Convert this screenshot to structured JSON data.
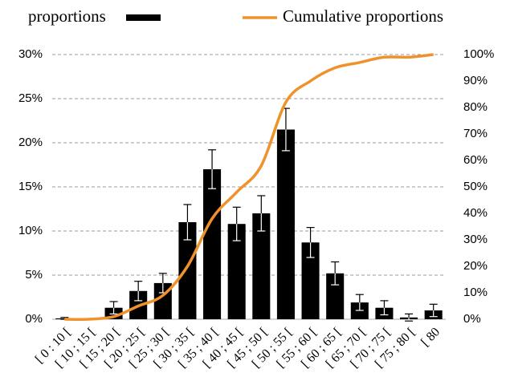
{
  "chart_data": {
    "type": "bar",
    "categories": [
      "[ 0 : 10 [",
      "[ 10 ; 15 [",
      "[ 15 ; 20 [",
      "[ 20 ; 25 [",
      "[ 25 ; 30 [",
      "[ 30 ; 35 [",
      "[ 35 ; 40 [",
      "[ 40 ; 45 [",
      "[ 45 ; 50 [",
      "[ 50 ; 55 [",
      "[ 55 ; 60 [",
      "[ 60 ; 65 [",
      "[ 65 ; 70 [",
      "[ 70 ; 75 [",
      "[ 75 ; 80 [",
      "[ 80"
    ],
    "series": [
      {
        "name": "proportions",
        "color": "#000000",
        "values": [
          0.1,
          0,
          1.3,
          3.2,
          4.1,
          11,
          17,
          10.8,
          12,
          21.5,
          8.7,
          5.2,
          1.9,
          1.3,
          0.2,
          1.0
        ],
        "errors": [
          0.1,
          0,
          0.7,
          1.1,
          1.1,
          2.0,
          2.2,
          1.9,
          2.0,
          2.4,
          1.7,
          1.3,
          0.9,
          0.8,
          0.4,
          0.7
        ]
      },
      {
        "name": "Cumulative proportions",
        "color": "#f0922b",
        "axis": "y2",
        "values": [
          0,
          0,
          1,
          5,
          9,
          20,
          38,
          48,
          58,
          82,
          90,
          95,
          97,
          99,
          99,
          100
        ]
      }
    ],
    "ylim": [
      0,
      30
    ],
    "yticks": [
      {
        "value": 0,
        "label": "0%"
      },
      {
        "value": 5,
        "label": "5%"
      },
      {
        "value": 10,
        "label": "10%"
      },
      {
        "value": 15,
        "label": "15%"
      },
      {
        "value": 20,
        "label": "20%"
      },
      {
        "value": 25,
        "label": "25%"
      },
      {
        "value": 30,
        "label": "30%"
      }
    ],
    "y2lim": [
      0,
      100
    ],
    "y2ticks": [
      {
        "value": 0,
        "label": "0%"
      },
      {
        "value": 10,
        "label": "10%"
      },
      {
        "value": 20,
        "label": "20%"
      },
      {
        "value": 30,
        "label": "30%"
      },
      {
        "value": 40,
        "label": "40%"
      },
      {
        "value": 50,
        "label": "50%"
      },
      {
        "value": 60,
        "label": "60%"
      },
      {
        "value": 70,
        "label": "70%"
      },
      {
        "value": 80,
        "label": "80%"
      },
      {
        "value": 90,
        "label": "90%"
      },
      {
        "value": 100,
        "label": "100%"
      }
    ],
    "grid": true,
    "legend": "top"
  }
}
